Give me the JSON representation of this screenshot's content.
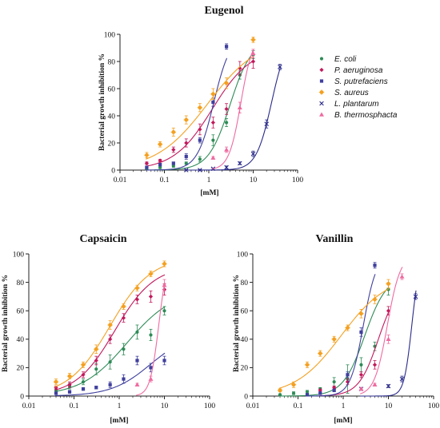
{
  "series_info": [
    {
      "key": "ecoli",
      "name": "E. coli",
      "color": "#2e8b57",
      "marker": "circle"
    },
    {
      "key": "paer",
      "name": "P. aeruginosa",
      "color": "#c2185b",
      "marker": "diamond"
    },
    {
      "key": "sput",
      "name": "S. putrefaciens",
      "color": "#3f3f9e",
      "marker": "square"
    },
    {
      "key": "saur",
      "name": "S. aureus",
      "color": "#f4a020",
      "marker": "star"
    },
    {
      "key": "lpla",
      "name": "L. plantarum",
      "color": "#2a2a8a",
      "marker": "x"
    },
    {
      "key": "bthe",
      "name": "B. thermosphacta",
      "color": "#ef6aa0",
      "marker": "triangle"
    }
  ],
  "chart_data": [
    {
      "type": "scatter",
      "title": "Eugenol",
      "xlabel": "[mM]",
      "ylabel": "Bacterial growth inhibition %",
      "xscale": "log",
      "xlim": [
        0.01,
        100
      ],
      "ylim": [
        0,
        100
      ],
      "xticks": [
        "0.01",
        "0.1",
        "1",
        "10",
        "100"
      ],
      "yticks": [
        "0",
        "20",
        "40",
        "60",
        "80",
        "100"
      ],
      "legend": "right",
      "series": [
        {
          "key": "ecoli",
          "x": [
            0.04,
            0.08,
            0.16,
            0.31,
            0.63,
            1.25,
            2.5,
            5,
            10
          ],
          "y": [
            1,
            2,
            3,
            5,
            8,
            22,
            35,
            70,
            85
          ],
          "err": [
            0.5,
            1,
            1,
            1,
            2,
            4,
            3,
            3,
            3
          ],
          "fit": {
            "bottom": 0,
            "top": 96,
            "ec50": 3.0,
            "hill": 1.8
          }
        },
        {
          "key": "paer",
          "x": [
            0.04,
            0.08,
            0.16,
            0.31,
            0.63,
            1.25,
            2.5,
            5,
            10
          ],
          "y": [
            5,
            7,
            15,
            20,
            30,
            35,
            45,
            75,
            80
          ],
          "err": [
            1,
            1,
            2,
            3,
            4,
            4,
            4,
            5,
            5
          ],
          "fit": {
            "bottom": 0,
            "top": 90,
            "ec50": 1.2,
            "hill": 1.0
          }
        },
        {
          "key": "sput",
          "x": [
            0.04,
            0.08,
            0.16,
            0.31,
            0.63,
            1.25,
            2.5
          ],
          "y": [
            2,
            4,
            5,
            10,
            22,
            50,
            91
          ],
          "err": [
            0.5,
            1,
            1,
            2,
            2,
            3,
            2
          ],
          "fit": {
            "bottom": 0,
            "top": 100,
            "ec50": 1.3,
            "hill": 2.3
          }
        },
        {
          "key": "saur",
          "x": [
            0.04,
            0.08,
            0.16,
            0.31,
            0.63,
            1.25,
            2.5,
            10
          ],
          "y": [
            11,
            19,
            28,
            37,
            46,
            56,
            64,
            96
          ],
          "err": [
            2,
            2,
            3,
            3,
            3,
            4,
            4,
            2
          ],
          "fit": {
            "bottom": 0,
            "top": 98,
            "ec50": 0.95,
            "hill": 0.75
          }
        },
        {
          "key": "lpla",
          "x": [
            0.31,
            0.63,
            1.25,
            2.5,
            5,
            10,
            20,
            40
          ],
          "y": [
            0,
            0,
            1,
            2,
            5,
            12,
            34,
            76
          ],
          "err": [
            0.5,
            0.5,
            0.5,
            1,
            1,
            2,
            3,
            2
          ],
          "fit": {
            "bottom": 0,
            "top": 100,
            "ec50": 26,
            "hill": 2.5
          }
        },
        {
          "key": "bthe",
          "x": [
            1.25,
            2.5,
            5,
            10
          ],
          "y": [
            9,
            15,
            46,
            86
          ],
          "err": [
            1,
            2,
            4,
            3
          ],
          "fit": {
            "bottom": 0,
            "top": 100,
            "ec50": 5.3,
            "hill": 3.2
          }
        }
      ]
    },
    {
      "type": "scatter",
      "title": "Capsaicin",
      "xlabel": "[mM]",
      "ylabel": "Bacterial growth inhibition %",
      "xscale": "log",
      "xlim": [
        0.01,
        100
      ],
      "ylim": [
        0,
        100
      ],
      "xticks": [
        "0.01",
        "0.1",
        "1",
        "10",
        "100"
      ],
      "yticks": [
        "0",
        "20",
        "40",
        "60",
        "80",
        "100"
      ],
      "series": [
        {
          "key": "ecoli",
          "x": [
            0.04,
            0.08,
            0.16,
            0.31,
            0.63,
            1.25,
            2.5,
            5,
            10
          ],
          "y": [
            4,
            7,
            10,
            19,
            24,
            33,
            45,
            43,
            60
          ],
          "err": [
            1,
            2,
            2,
            4,
            5,
            4,
            5,
            4,
            3
          ],
          "fit": {
            "bottom": 0,
            "top": 75,
            "ec50": 1.5,
            "hill": 0.85
          }
        },
        {
          "key": "paer",
          "x": [
            0.04,
            0.08,
            0.16,
            0.31,
            0.63,
            1.25,
            2.5,
            5,
            10
          ],
          "y": [
            6,
            8,
            15,
            25,
            40,
            55,
            68,
            70,
            75
          ],
          "err": [
            1,
            2,
            2,
            3,
            3,
            3,
            3,
            4,
            4
          ],
          "fit": {
            "bottom": 0,
            "top": 92,
            "ec50": 0.8,
            "hill": 1.0
          }
        },
        {
          "key": "sput",
          "x": [
            0.04,
            0.08,
            0.16,
            0.31,
            0.63,
            1.25,
            2.5,
            5,
            10
          ],
          "y": [
            2,
            3,
            5,
            6,
            8,
            12,
            25,
            20,
            25
          ],
          "err": [
            0.5,
            1,
            1,
            1,
            2,
            3,
            3,
            3,
            3
          ],
          "fit": {
            "bottom": 0,
            "top": 45,
            "ec50": 5.0,
            "hill": 1.0
          }
        },
        {
          "key": "saur",
          "x": [
            0.04,
            0.08,
            0.16,
            0.31,
            0.63,
            1.25,
            2.5,
            5,
            10
          ],
          "y": [
            10,
            14,
            22,
            33,
            50,
            63,
            76,
            86,
            93
          ],
          "err": [
            2,
            2,
            2,
            3,
            3,
            2,
            2,
            2,
            2
          ],
          "fit": {
            "bottom": 0,
            "top": 98,
            "ec50": 0.62,
            "hill": 0.95
          }
        },
        {
          "key": "bthe",
          "x": [
            2.5,
            5,
            10
          ],
          "y": [
            8,
            12,
            78
          ],
          "err": [
            1,
            2,
            4
          ],
          "fit": {
            "bottom": 0,
            "top": 100,
            "ec50": 7.5,
            "hill": 4.5
          }
        }
      ]
    },
    {
      "type": "scatter",
      "title": "Vanillin",
      "xlabel": "[mM]",
      "ylabel": "Bacterial growth inhibition %",
      "xscale": "log",
      "xlim": [
        0.01,
        100
      ],
      "ylim": [
        0,
        100
      ],
      "xticks": [
        "0.01",
        "0.1",
        "1",
        "10",
        "100"
      ],
      "yticks": [
        "0",
        "20",
        "40",
        "60",
        "80",
        "100"
      ],
      "series": [
        {
          "key": "ecoli",
          "x": [
            0.04,
            0.08,
            0.16,
            0.31,
            0.63,
            1.25,
            2.5,
            5,
            10
          ],
          "y": [
            1,
            2,
            3,
            5,
            10,
            12,
            22,
            35,
            75
          ],
          "err": [
            0.5,
            1,
            1,
            1,
            3,
            10,
            5,
            3,
            4
          ],
          "fit": {
            "bottom": 0,
            "top": 85,
            "ec50": 3.0,
            "hill": 1.8
          }
        },
        {
          "key": "paer",
          "x": [
            0.31,
            0.63,
            1.25,
            2.5,
            5,
            10
          ],
          "y": [
            4,
            6,
            10,
            15,
            22,
            60
          ],
          "err": [
            1,
            1,
            2,
            2,
            3,
            3
          ],
          "fit": {
            "bottom": 0,
            "top": 80,
            "ec50": 6.0,
            "hill": 2.0
          }
        },
        {
          "key": "sput",
          "x": [
            0.16,
            0.31,
            0.63,
            1.25,
            2.5,
            5
          ],
          "y": [
            1,
            2,
            4,
            15,
            45,
            92
          ],
          "err": [
            0.5,
            1,
            1,
            2,
            3,
            2
          ],
          "fit": {
            "bottom": 0,
            "top": 100,
            "ec50": 2.8,
            "hill": 3.0
          }
        },
        {
          "key": "saur",
          "x": [
            0.04,
            0.08,
            0.16,
            0.31,
            0.63,
            1.25,
            2.5,
            5,
            10
          ],
          "y": [
            4,
            8,
            22,
            30,
            40,
            48,
            58,
            68,
            79
          ],
          "err": [
            1,
            2,
            2,
            2,
            2,
            2,
            3,
            3,
            3
          ],
          "fit": {
            "bottom": 0,
            "top": 85,
            "ec50": 0.9,
            "hill": 0.85
          }
        },
        {
          "key": "lpla",
          "x": [
            2.5,
            10,
            20,
            40
          ],
          "y": [
            5,
            7,
            12,
            70
          ],
          "err": [
            1,
            1,
            2,
            2
          ],
          "fit": {
            "bottom": 0,
            "top": 100,
            "ec50": 33,
            "hill": 5.0
          }
        },
        {
          "key": "bthe",
          "x": [
            2.5,
            5,
            10,
            20
          ],
          "y": [
            5,
            8,
            40,
            84
          ],
          "err": [
            1,
            1,
            3,
            2
          ],
          "fit": {
            "bottom": 0,
            "top": 100,
            "ec50": 9.5,
            "hill": 3.0
          }
        }
      ]
    }
  ]
}
